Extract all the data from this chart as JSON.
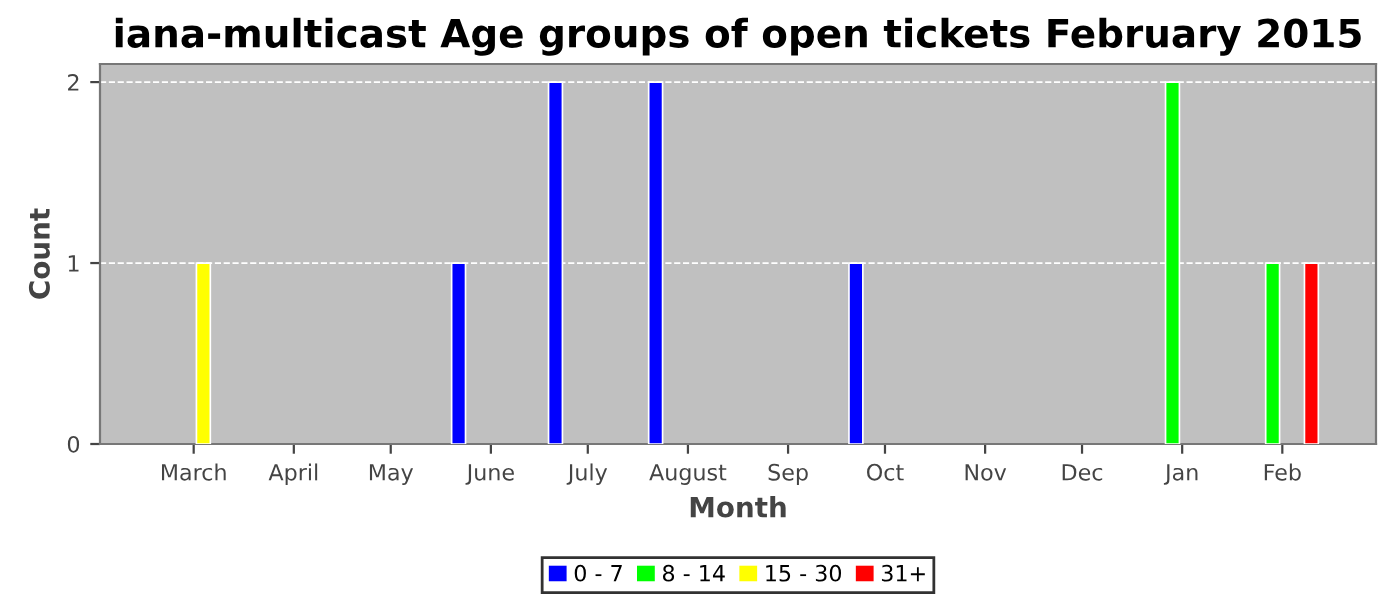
{
  "chart_data": {
    "type": "bar",
    "title": "iana-multicast Age groups of open tickets February 2015",
    "xlabel": "Month",
    "ylabel": "Count",
    "series": [
      {
        "name": "0 - 7",
        "color": "#0000ff",
        "x": [
          "2014-05-22",
          "2014-06-21",
          "2014-07-22",
          "2014-09-22"
        ],
        "values": [
          1,
          2,
          2,
          1
        ]
      },
      {
        "name": "8 - 14",
        "color": "#00ff00",
        "x": [
          "2014-12-29",
          "2015-01-29"
        ],
        "values": [
          2,
          1
        ]
      },
      {
        "name": "15 - 30",
        "color": "#ffff00",
        "x": [
          "2014-03-04"
        ],
        "values": [
          1
        ]
      },
      {
        "name": "31+",
        "color": "#ff0000",
        "x": [
          "2015-02-10"
        ],
        "values": [
          1
        ]
      }
    ],
    "xlim": [
      "2014-01-31",
      "2015-03-02"
    ],
    "xticks": [
      {
        "value": "2014-03-01",
        "label": "March"
      },
      {
        "value": "2014-04-01",
        "label": "April"
      },
      {
        "value": "2014-05-01",
        "label": "May"
      },
      {
        "value": "2014-06-01",
        "label": "June"
      },
      {
        "value": "2014-07-01",
        "label": "July"
      },
      {
        "value": "2014-08-01",
        "label": "August"
      },
      {
        "value": "2014-09-01",
        "label": "Sep"
      },
      {
        "value": "2014-10-01",
        "label": "Oct"
      },
      {
        "value": "2014-11-01",
        "label": "Nov"
      },
      {
        "value": "2014-12-01",
        "label": "Dec"
      },
      {
        "value": "2015-01-01",
        "label": "Jan"
      },
      {
        "value": "2015-02-01",
        "label": "Feb"
      }
    ],
    "ylim": [
      0,
      2.1
    ],
    "yticks": [
      0,
      1,
      2
    ],
    "grid": "y",
    "legend": "bottom"
  }
}
